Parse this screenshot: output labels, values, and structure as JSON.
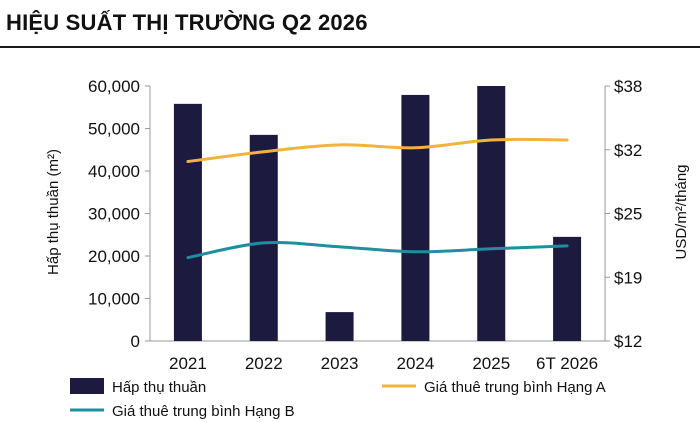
{
  "title": "HIỆU SUẤT THỊ TRƯỜNG Q2 2026",
  "chart_data": {
    "type": "bar",
    "categories": [
      "2021",
      "2022",
      "2023",
      "2024",
      "2025",
      "6T 2026"
    ],
    "ylabel_left": "Hấp thụ thuần (m²)",
    "ylabel_right": "USD/m²/tháng",
    "ylim_left": [
      0,
      60000
    ],
    "ylim_right": [
      12,
      38
    ],
    "left_ticks": [
      "0",
      "10,000",
      "20,000",
      "30,000",
      "40,000",
      "50,000",
      "60,000"
    ],
    "right_ticks": [
      "$12",
      "$19",
      "$25",
      "$32",
      "$38"
    ],
    "grid": false,
    "legend_position": "bottom",
    "series": [
      {
        "name": "Hấp thụ thuần",
        "type": "bar",
        "axis": "left",
        "color": "#1c1a3f",
        "values": [
          55800,
          48500,
          6800,
          57900,
          60000,
          24500
        ]
      },
      {
        "name": "Giá thuê trung bình Hạng A",
        "type": "line",
        "axis": "right",
        "color": "#f2b33d",
        "values": [
          30.3,
          31.3,
          32.0,
          31.7,
          32.5,
          32.5
        ]
      },
      {
        "name": "Giá thuê trung bình Hạng B",
        "type": "line",
        "axis": "right",
        "color": "#1f8fa0",
        "values": [
          20.5,
          22.0,
          21.6,
          21.1,
          21.4,
          21.7
        ]
      }
    ]
  }
}
